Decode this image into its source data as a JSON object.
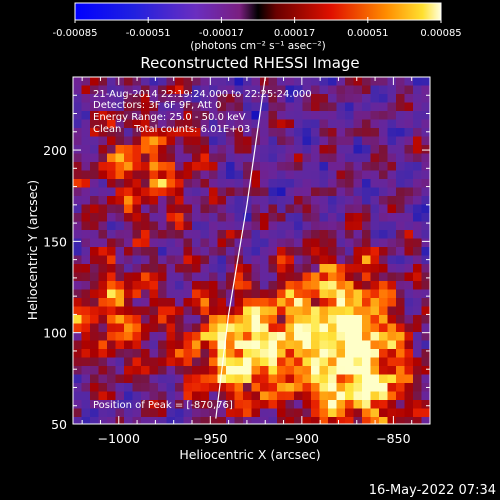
{
  "colorbar": {
    "ticks": [
      "-0.00085",
      "-0.00051",
      "-0.00017",
      "0.00017",
      "0.00051",
      "0.00085"
    ],
    "units_line": "(photons cm⁻² s⁻¹ asec⁻²)",
    "range": [
      -0.00085,
      0.00085
    ]
  },
  "chart_data": {
    "type": "heatmap",
    "title": "Reconstructed RHESSI Image",
    "xlabel": "Heliocentric X (arcsec)",
    "ylabel": "Heliocentric Y (arcsec)",
    "xlim": [
      -1025,
      -830
    ],
    "ylim": [
      50,
      240
    ],
    "x_ticks": [
      -1000,
      -950,
      -900,
      -850
    ],
    "y_ticks": [
      50,
      100,
      150,
      200
    ],
    "annotations": [
      "21-Aug-2014 22:19:24.000 to 22:25:24.000",
      "Detectors: 3F 6F 9F, Att 0",
      "Energy Range: 25.0 - 50.0 keV",
      "Clean    Total counts: 6.01E+03"
    ],
    "peak_label": "Position of Peak = [-870,76]",
    "peak_position": [
      -870,
      76
    ],
    "limb_line": [
      [
        -947,
        53
      ],
      [
        -940,
        110
      ],
      [
        -930,
        170
      ],
      [
        -920,
        240
      ]
    ],
    "bright_sources": [
      {
        "x": -932,
        "y": 90,
        "intensity": 1.0
      },
      {
        "x": -870,
        "y": 76,
        "intensity": 1.0
      },
      {
        "x": -880,
        "y": 115,
        "intensity": 0.8
      },
      {
        "x": -1005,
        "y": 110,
        "intensity": 0.55
      },
      {
        "x": -985,
        "y": 190,
        "intensity": 0.55
      }
    ]
  },
  "timestamp": "16-May-2022 07:34"
}
